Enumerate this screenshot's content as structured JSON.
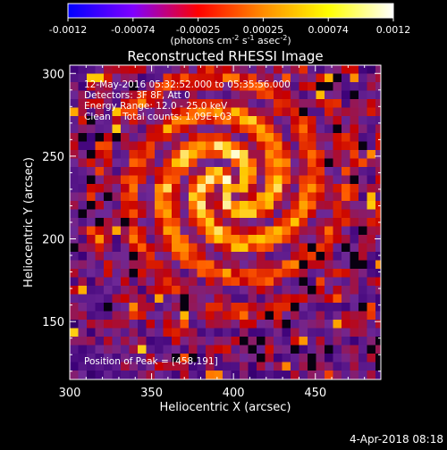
{
  "chart_data": {
    "type": "heatmap",
    "title": "Reconstructed RHESSI Image",
    "colorbar": {
      "ticks": [
        "-0.0012",
        "-0.00074",
        "-0.00025",
        "0.00025",
        "0.00074",
        "0.0012"
      ],
      "min": -0.0012,
      "max": 0.0012,
      "unit_label": {
        "prefix": "(photons cm",
        "sup1": "-2",
        "mid1": " s",
        "sup2": "-1",
        "mid2": " asec",
        "sup3": "-2",
        "suffix": ")"
      },
      "colors": [
        "#0000ff",
        "#7f00ff",
        "#ff0000",
        "#ff8c00",
        "#ffff00",
        "#ffffff"
      ]
    },
    "xlabel": "Heliocentric X (arcsec)",
    "ylabel": "Heliocentric Y (arcsec)",
    "xlim": [
      300,
      490
    ],
    "ylim": [
      115,
      305
    ],
    "xticks": [
      300,
      350,
      400,
      450
    ],
    "yticks": [
      150,
      200,
      250,
      300
    ],
    "peak_marker": [
      458,
      191
    ]
  },
  "annotations": [
    "12-May-2016 05:32:52.000 to 05:35:56.000",
    "Detectors: 3F 8F, Att 0",
    "Energy Range: 12.0 - 25.0 keV",
    "Clean    Total counts: 1.09E+03"
  ],
  "peak_text": "Position of Peak = [458,191]",
  "footer_date": "4-Apr-2018 08:18"
}
